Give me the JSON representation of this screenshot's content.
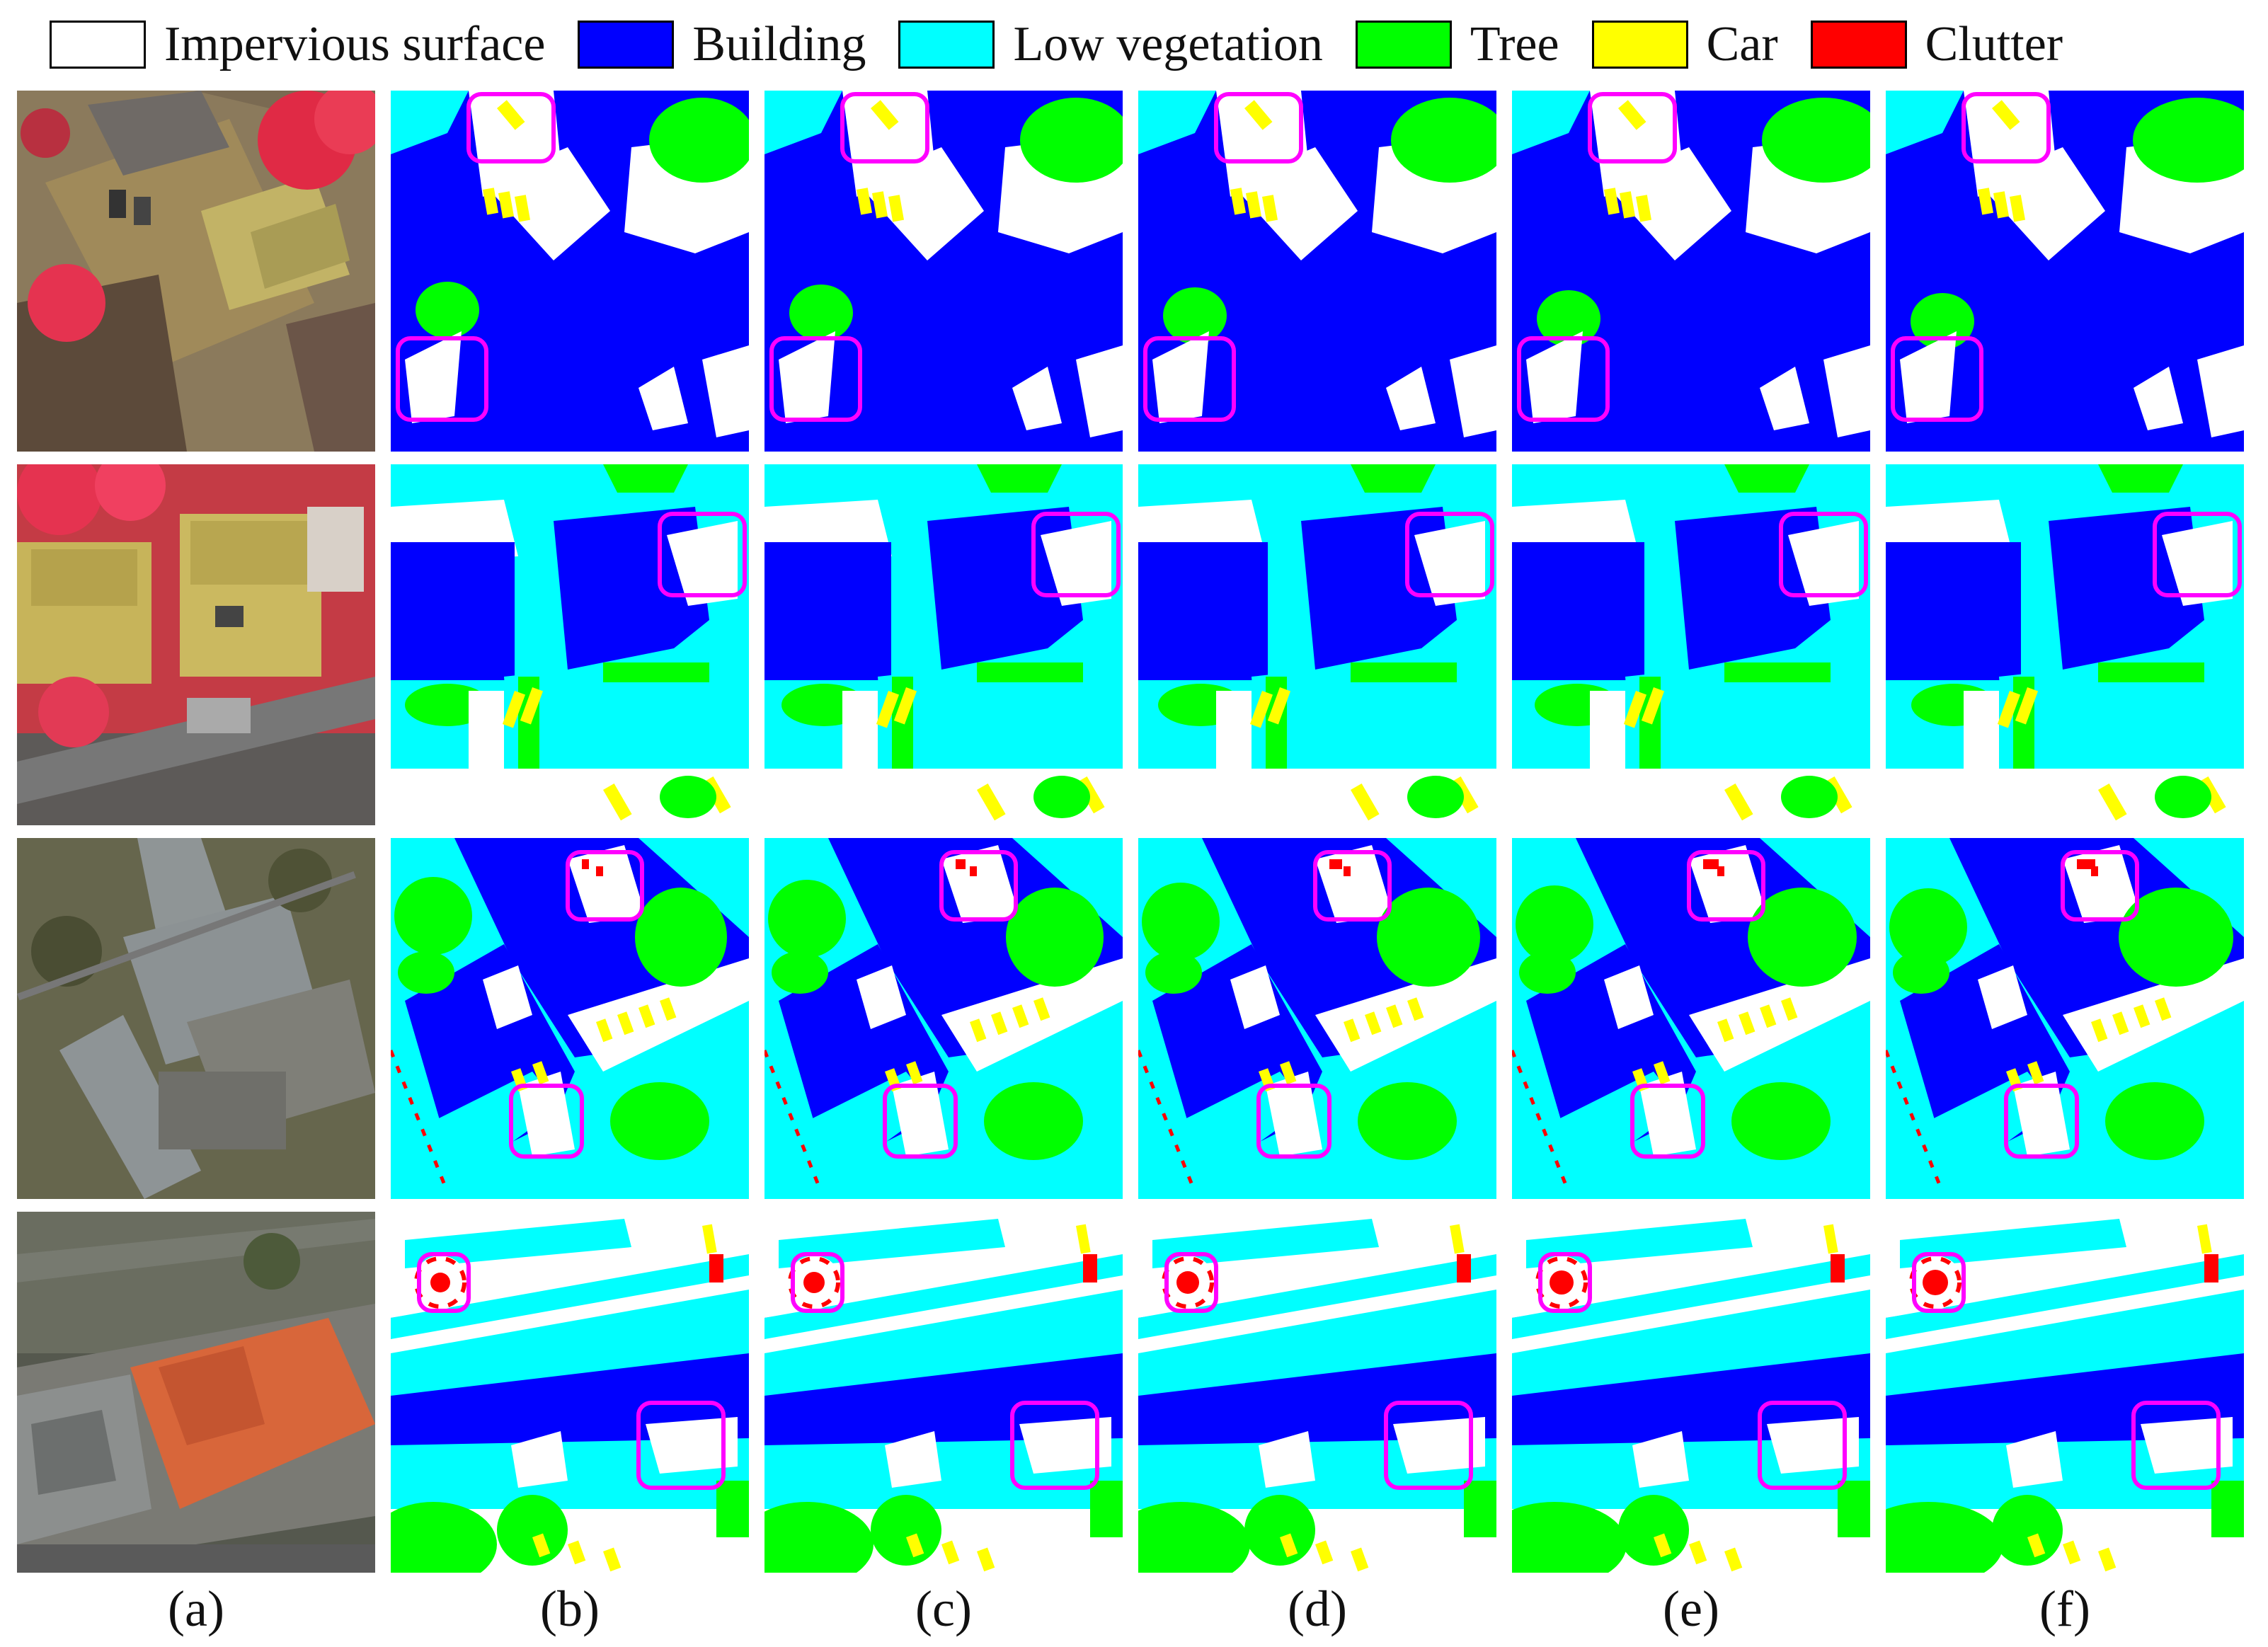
{
  "legend": [
    {
      "label": "Impervious surface",
      "color": "#ffffff"
    },
    {
      "label": "Building",
      "color": "#0000ff"
    },
    {
      "label": "Low vegetation",
      "color": "#00ffff"
    },
    {
      "label": "Tree",
      "color": "#00ff00"
    },
    {
      "label": "Car",
      "color": "#ffff00"
    },
    {
      "label": "Clutter",
      "color": "#ff0000"
    }
  ],
  "columns": [
    "(a)",
    "(b)",
    "(c)",
    "(d)",
    "(e)",
    "(f)"
  ],
  "highlight_color": "#ff00ff",
  "rows": 4
}
